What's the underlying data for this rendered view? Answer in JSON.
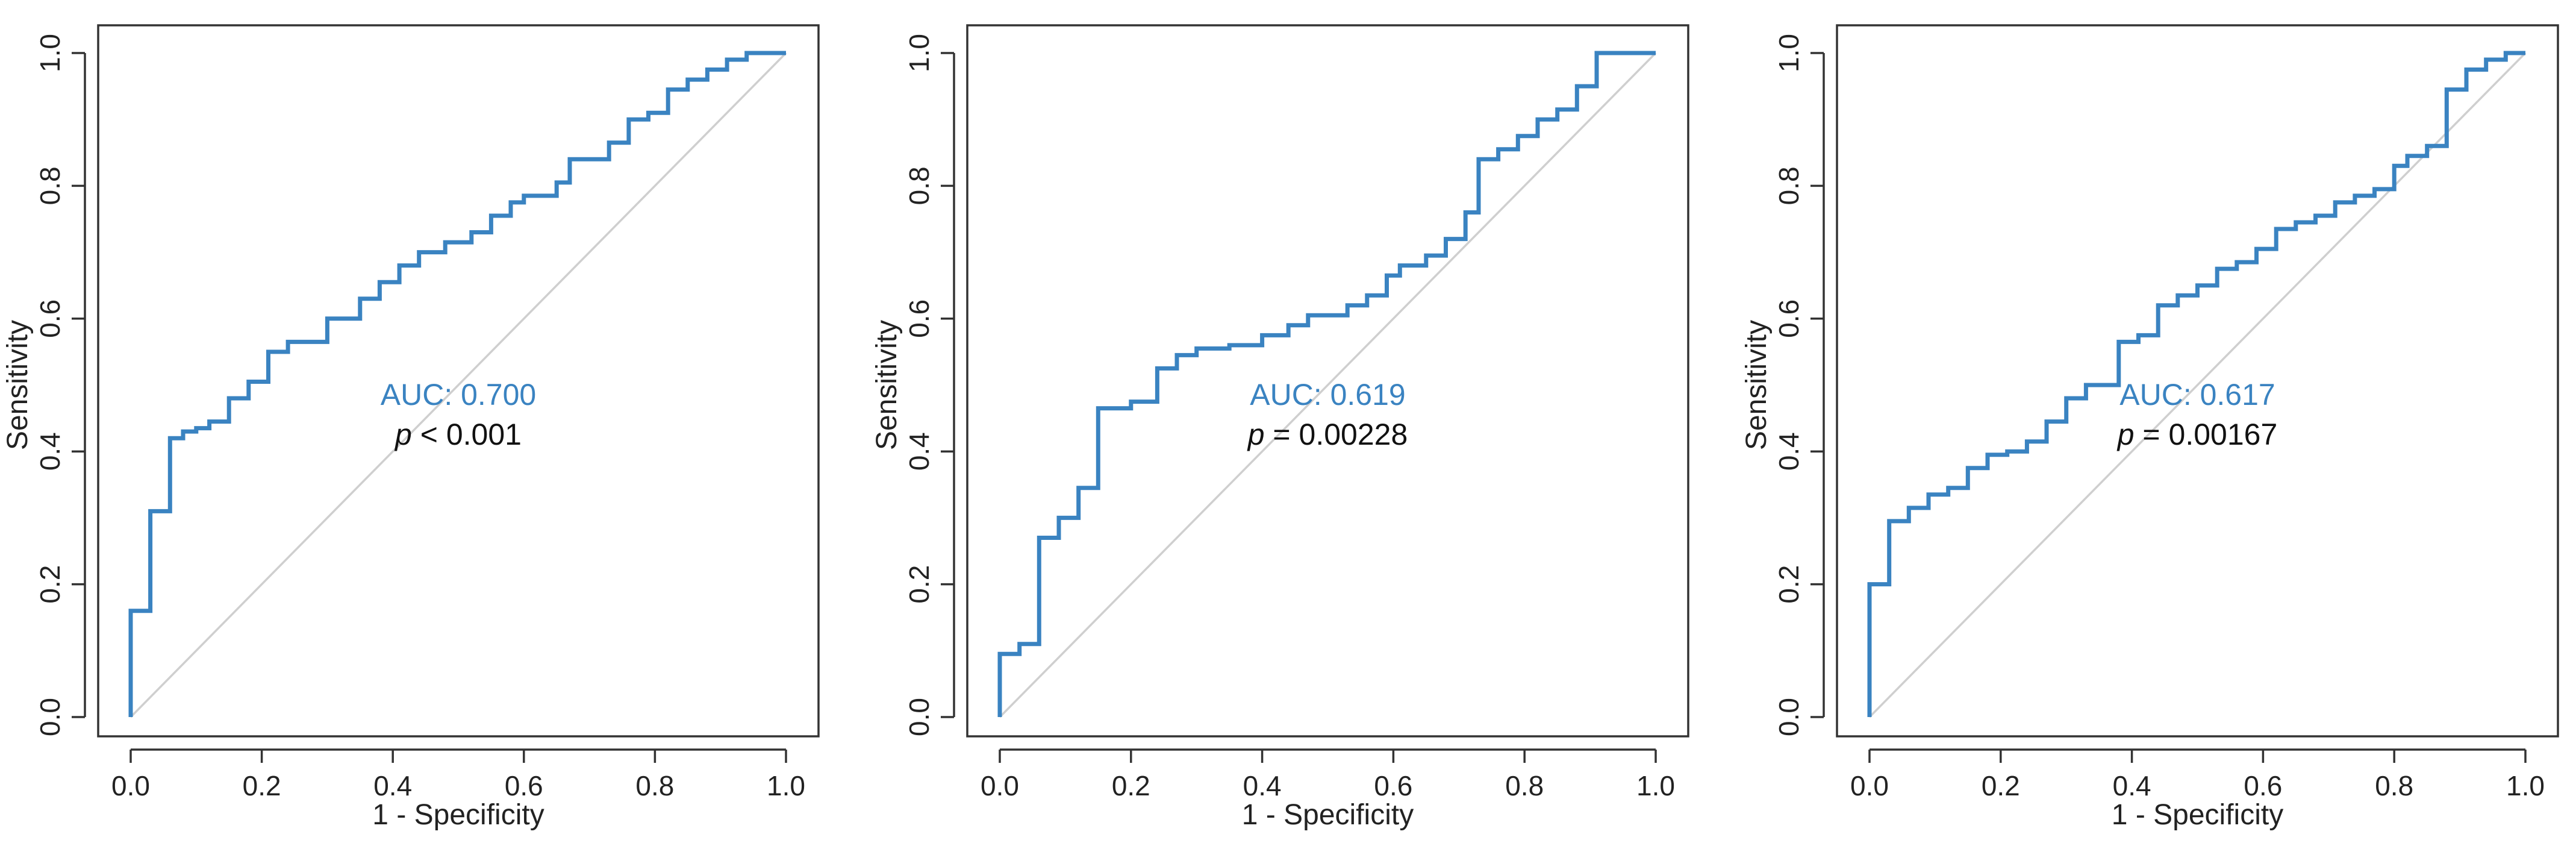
{
  "colors": {
    "roc": "#3a83c1",
    "auc_text": "#3a83c1",
    "p_text": "#111111",
    "diagonal": "#cfcfcf",
    "frame": "#333333"
  },
  "chart_data": [
    {
      "type": "line",
      "title": "",
      "xlabel": "1 - Specificity",
      "ylabel": "Sensitivity",
      "xlim": [
        0,
        1
      ],
      "ylim": [
        0,
        1
      ],
      "xticks": [
        "0.0",
        "0.2",
        "0.4",
        "0.6",
        "0.8",
        "1.0"
      ],
      "yticks": [
        "0.0",
        "0.2",
        "0.4",
        "0.6",
        "0.8",
        "1.0"
      ],
      "reference_line": "diagonal",
      "auc_label": "AUC: 0.700",
      "p_symbol": "p",
      "p_rest": " < 0.001",
      "series": [
        {
          "name": "ROC",
          "x": [
            0,
            0,
            0.03,
            0.03,
            0.06,
            0.06,
            0.08,
            0.08,
            0.1,
            0.1,
            0.12,
            0.12,
            0.15,
            0.15,
            0.18,
            0.18,
            0.21,
            0.21,
            0.24,
            0.24,
            0.3,
            0.3,
            0.35,
            0.35,
            0.38,
            0.38,
            0.41,
            0.41,
            0.44,
            0.44,
            0.48,
            0.48,
            0.52,
            0.52,
            0.55,
            0.55,
            0.58,
            0.58,
            0.6,
            0.6,
            0.65,
            0.65,
            0.67,
            0.67,
            0.73,
            0.73,
            0.76,
            0.76,
            0.79,
            0.79,
            0.82,
            0.82,
            0.85,
            0.85,
            0.88,
            0.88,
            0.91,
            0.91,
            0.94,
            0.94,
            1.0
          ],
          "y": [
            0,
            0.16,
            0.16,
            0.31,
            0.31,
            0.42,
            0.42,
            0.43,
            0.43,
            0.435,
            0.435,
            0.445,
            0.445,
            0.48,
            0.48,
            0.505,
            0.505,
            0.55,
            0.55,
            0.565,
            0.565,
            0.6,
            0.6,
            0.63,
            0.63,
            0.655,
            0.655,
            0.68,
            0.68,
            0.7,
            0.7,
            0.715,
            0.715,
            0.73,
            0.73,
            0.755,
            0.755,
            0.775,
            0.775,
            0.785,
            0.785,
            0.805,
            0.805,
            0.84,
            0.84,
            0.865,
            0.865,
            0.9,
            0.9,
            0.91,
            0.91,
            0.945,
            0.945,
            0.96,
            0.96,
            0.975,
            0.975,
            0.99,
            0.99,
            1.0,
            1.0
          ]
        }
      ]
    },
    {
      "type": "line",
      "title": "",
      "xlabel": "1 - Specificity",
      "ylabel": "Sensitivity",
      "xlim": [
        0,
        1
      ],
      "ylim": [
        0,
        1
      ],
      "xticks": [
        "0.0",
        "0.2",
        "0.4",
        "0.6",
        "0.8",
        "1.0"
      ],
      "yticks": [
        "0.0",
        "0.2",
        "0.4",
        "0.6",
        "0.8",
        "1.0"
      ],
      "reference_line": "diagonal",
      "auc_label": "AUC: 0.619",
      "p_symbol": "p",
      "p_rest": " = 0.00228",
      "series": [
        {
          "name": "ROC",
          "x": [
            0,
            0,
            0.03,
            0.03,
            0.06,
            0.06,
            0.09,
            0.09,
            0.12,
            0.12,
            0.15,
            0.15,
            0.2,
            0.2,
            0.24,
            0.24,
            0.27,
            0.27,
            0.3,
            0.3,
            0.35,
            0.35,
            0.4,
            0.4,
            0.44,
            0.44,
            0.47,
            0.47,
            0.53,
            0.53,
            0.56,
            0.56,
            0.59,
            0.59,
            0.61,
            0.61,
            0.65,
            0.65,
            0.68,
            0.68,
            0.71,
            0.71,
            0.73,
            0.73,
            0.76,
            0.76,
            0.79,
            0.79,
            0.82,
            0.82,
            0.85,
            0.85,
            0.88,
            0.88,
            0.91,
            0.91,
            0.94,
            0.94,
            1.0
          ],
          "y": [
            0,
            0.095,
            0.095,
            0.11,
            0.11,
            0.27,
            0.27,
            0.3,
            0.3,
            0.345,
            0.345,
            0.465,
            0.465,
            0.475,
            0.475,
            0.525,
            0.525,
            0.545,
            0.545,
            0.555,
            0.555,
            0.56,
            0.56,
            0.575,
            0.575,
            0.59,
            0.59,
            0.605,
            0.605,
            0.62,
            0.62,
            0.635,
            0.635,
            0.665,
            0.665,
            0.68,
            0.68,
            0.695,
            0.695,
            0.72,
            0.72,
            0.76,
            0.76,
            0.84,
            0.84,
            0.855,
            0.855,
            0.875,
            0.875,
            0.9,
            0.9,
            0.915,
            0.915,
            0.95,
            0.95,
            1.0,
            1.0,
            1.0,
            1.0
          ]
        }
      ]
    },
    {
      "type": "line",
      "title": "",
      "xlabel": "1 - Specificity",
      "ylabel": "Sensitivity",
      "xlim": [
        0,
        1
      ],
      "ylim": [
        0,
        1
      ],
      "xticks": [
        "0.0",
        "0.2",
        "0.4",
        "0.6",
        "0.8",
        "1.0"
      ],
      "yticks": [
        "0.0",
        "0.2",
        "0.4",
        "0.6",
        "0.8",
        "1.0"
      ],
      "reference_line": "diagonal",
      "auc_label": "AUC: 0.617",
      "p_symbol": "p",
      "p_rest": " = 0.00167",
      "series": [
        {
          "name": "ROC",
          "x": [
            0,
            0,
            0.03,
            0.03,
            0.06,
            0.06,
            0.09,
            0.09,
            0.12,
            0.12,
            0.15,
            0.15,
            0.18,
            0.18,
            0.21,
            0.21,
            0.24,
            0.24,
            0.27,
            0.27,
            0.3,
            0.3,
            0.33,
            0.33,
            0.38,
            0.38,
            0.41,
            0.41,
            0.44,
            0.44,
            0.47,
            0.47,
            0.5,
            0.5,
            0.53,
            0.53,
            0.56,
            0.56,
            0.59,
            0.59,
            0.62,
            0.62,
            0.65,
            0.65,
            0.68,
            0.68,
            0.71,
            0.71,
            0.74,
            0.74,
            0.77,
            0.77,
            0.8,
            0.8,
            0.82,
            0.82,
            0.85,
            0.85,
            0.88,
            0.88,
            0.91,
            0.91,
            0.94,
            0.94,
            0.97,
            0.97,
            1.0
          ],
          "y": [
            0,
            0.2,
            0.2,
            0.295,
            0.295,
            0.315,
            0.315,
            0.335,
            0.335,
            0.345,
            0.345,
            0.375,
            0.375,
            0.395,
            0.395,
            0.4,
            0.4,
            0.415,
            0.415,
            0.445,
            0.445,
            0.48,
            0.48,
            0.5,
            0.5,
            0.565,
            0.565,
            0.575,
            0.575,
            0.62,
            0.62,
            0.635,
            0.635,
            0.65,
            0.65,
            0.675,
            0.675,
            0.685,
            0.685,
            0.705,
            0.705,
            0.735,
            0.735,
            0.745,
            0.745,
            0.755,
            0.755,
            0.775,
            0.775,
            0.785,
            0.785,
            0.795,
            0.795,
            0.83,
            0.83,
            0.845,
            0.845,
            0.86,
            0.86,
            0.945,
            0.945,
            0.975,
            0.975,
            0.99,
            0.99,
            1.0,
            1.0
          ]
        }
      ]
    }
  ]
}
